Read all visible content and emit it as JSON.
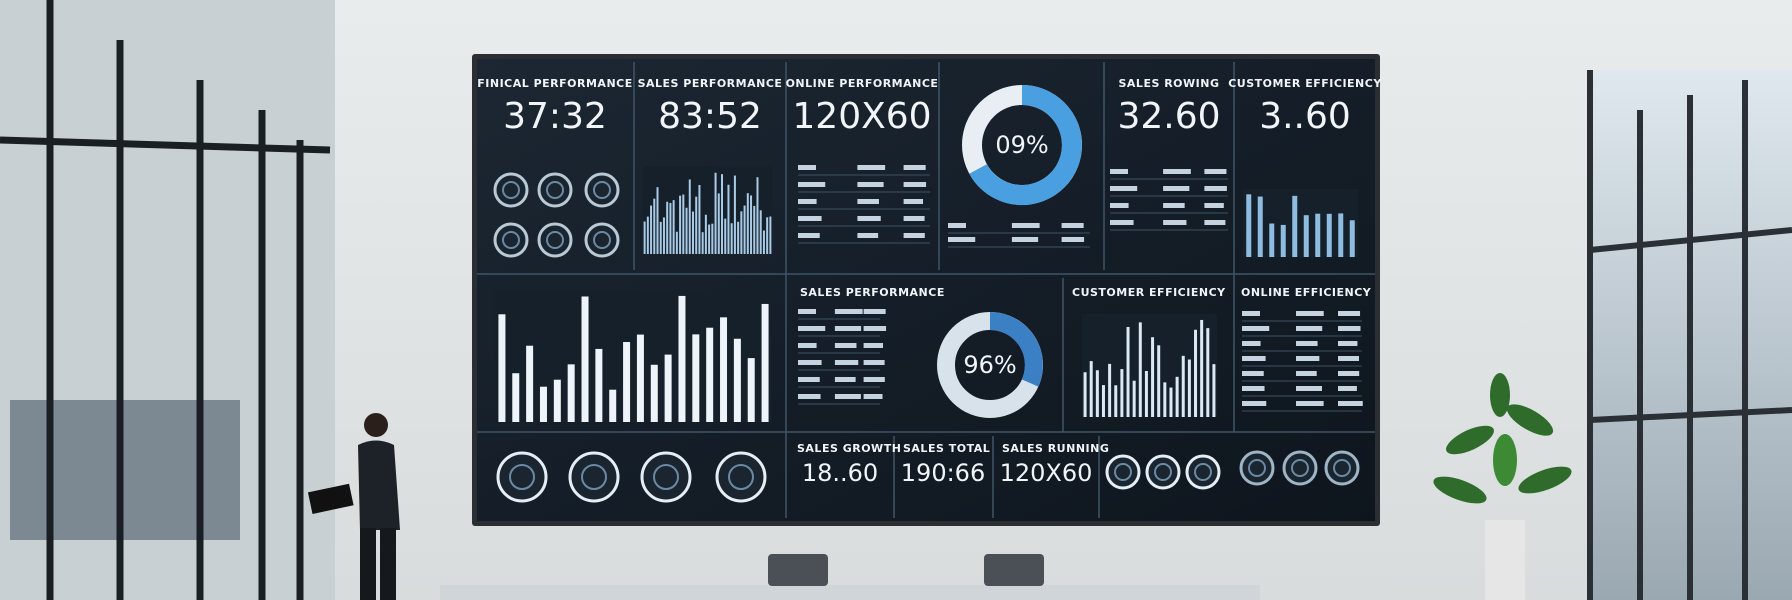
{
  "screen": {
    "top_panels": [
      {
        "title": "FINICAL PERFORMANCE",
        "value": "37:32"
      },
      {
        "title": "SALES PERFORMANCE",
        "value": "83:52"
      },
      {
        "title": "ONLINE PERFORMANCE",
        "value": "120X60"
      },
      {
        "title": "SALES ROWING",
        "value": "32.60"
      },
      {
        "title": "CUSTOMER EFFICIENCY",
        "value": "3..60"
      }
    ],
    "top_donut": "09%",
    "middle_panels": [
      {
        "title": "SALES PERFORMANCE"
      },
      {
        "title": "CUSTOMER EFFICIENCY"
      },
      {
        "title": "ONLINE EFFICIENCY"
      }
    ],
    "middle_donut": "96%",
    "bottom_panels": [
      {
        "title": "SALES GROWTH",
        "value": "18..60"
      },
      {
        "title": "SALES TOTAL",
        "value": "190:66"
      },
      {
        "title": "SALES RUNNING",
        "value": "120X60"
      }
    ]
  }
}
